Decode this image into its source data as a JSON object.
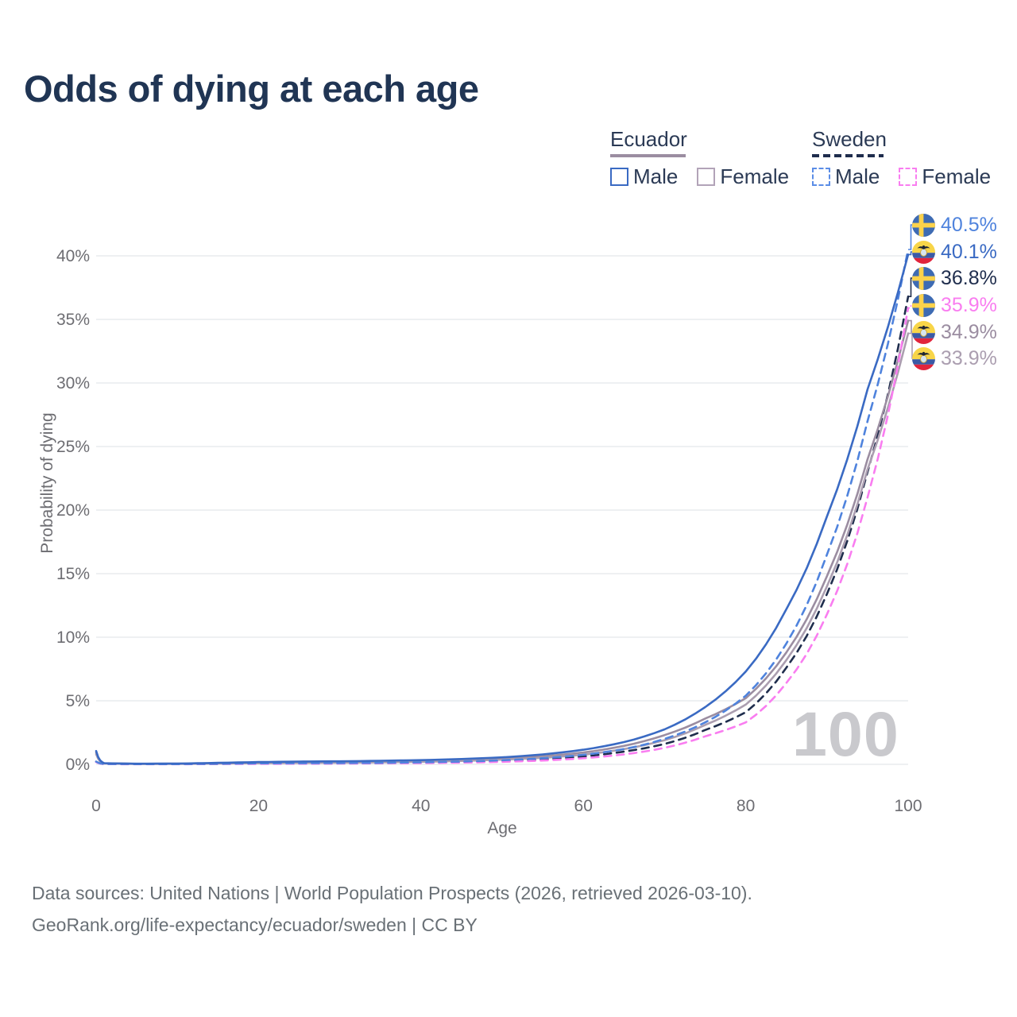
{
  "page": {
    "title": "Odds of dying at each age",
    "footer_line1": "Data sources: United Nations | World Population Prospects (2026, retrieved 2026-03-10).",
    "footer_line2": "GeoRank.org/life-expectancy/ecuador/sweden | CC BY"
  },
  "legend": {
    "groups": [
      {
        "name": "Ecuador",
        "underline_color": "#9b8da1",
        "underline_dashed": false,
        "items": [
          {
            "label": "Male",
            "color": "#3a6ac3",
            "dashed": false
          },
          {
            "label": "Female",
            "color": "#b2a3b8",
            "dashed": false
          }
        ]
      },
      {
        "name": "Sweden",
        "underline_color": "#1f2d4d",
        "underline_dashed": true,
        "items": [
          {
            "label": "Male",
            "color": "#5b8de6",
            "dashed": true
          },
          {
            "label": "Female",
            "color": "#f97df0",
            "dashed": true
          }
        ]
      }
    ]
  },
  "chart_data": {
    "type": "line",
    "title": "Odds of dying at each age",
    "xlabel": "Age",
    "ylabel": "Probability of dying",
    "xlim": [
      0,
      100
    ],
    "ylim_percent": [
      0,
      42
    ],
    "x_ticks": [
      0,
      20,
      40,
      60,
      80,
      100
    ],
    "y_ticks_percent": [
      0,
      5,
      10,
      15,
      20,
      25,
      30,
      35,
      40
    ],
    "y_tick_suffix": "%",
    "grid": "horizontal",
    "legend_position": "top-right",
    "hovered_age_label": "100",
    "ages": [
      0,
      1,
      5,
      10,
      15,
      20,
      25,
      30,
      35,
      40,
      45,
      50,
      55,
      60,
      65,
      70,
      75,
      80,
      85,
      90,
      95,
      100
    ],
    "series": [
      {
        "name": "Sweden Male",
        "country": "Sweden",
        "sex": "male",
        "flag": "sweden",
        "color": "#4f83dd",
        "dashed": true,
        "end_label": "40.5%",
        "values_percent": [
          0.22,
          0.03,
          0.02,
          0.02,
          0.05,
          0.08,
          0.09,
          0.1,
          0.12,
          0.16,
          0.22,
          0.32,
          0.48,
          0.75,
          1.2,
          2.0,
          3.3,
          5.4,
          9.5,
          16.5,
          27.0,
          40.5
        ]
      },
      {
        "name": "Ecuador Male",
        "country": "Ecuador",
        "sex": "male",
        "flag": "ecuador",
        "color": "#3a6ac3",
        "dashed": false,
        "end_label": "40.1%",
        "values_percent": [
          1.05,
          0.09,
          0.05,
          0.06,
          0.12,
          0.18,
          0.22,
          0.24,
          0.28,
          0.33,
          0.42,
          0.55,
          0.78,
          1.15,
          1.75,
          2.75,
          4.5,
          7.3,
          12.2,
          19.5,
          29.5,
          40.1
        ]
      },
      {
        "name": "Sweden Both sexes",
        "country": "Sweden",
        "sex": "both",
        "flag": "sweden",
        "color": "#1f2d4d",
        "dashed": true,
        "end_label": "36.8%",
        "values_percent": [
          0.2,
          0.03,
          0.02,
          0.02,
          0.04,
          0.06,
          0.07,
          0.08,
          0.1,
          0.13,
          0.18,
          0.26,
          0.39,
          0.62,
          1.0,
          1.6,
          2.7,
          4.1,
          7.6,
          13.4,
          23.0,
          36.8
        ]
      },
      {
        "name": "Sweden Female",
        "country": "Sweden",
        "sex": "female",
        "flag": "sweden",
        "color": "#f97df0",
        "dashed": true,
        "end_label": "35.9%",
        "values_percent": [
          0.18,
          0.02,
          0.01,
          0.01,
          0.03,
          0.04,
          0.05,
          0.06,
          0.08,
          0.1,
          0.14,
          0.2,
          0.3,
          0.48,
          0.78,
          1.3,
          2.2,
          3.3,
          6.4,
          11.8,
          21.0,
          35.9
        ]
      },
      {
        "name": "Ecuador Both sexes",
        "country": "Ecuador",
        "sex": "both",
        "flag": "ecuador",
        "color": "#9b8da1",
        "dashed": false,
        "end_label": "34.9%",
        "values_percent": [
          0.92,
          0.08,
          0.04,
          0.05,
          0.09,
          0.13,
          0.16,
          0.18,
          0.21,
          0.26,
          0.33,
          0.45,
          0.64,
          0.93,
          1.45,
          2.3,
          3.6,
          5.2,
          8.8,
          14.8,
          24.0,
          34.9
        ]
      },
      {
        "name": "Ecuador Female",
        "country": "Ecuador",
        "sex": "female",
        "flag": "ecuador",
        "color": "#ab9eb0",
        "dashed": false,
        "end_label": "33.9%",
        "values_percent": [
          0.8,
          0.07,
          0.04,
          0.04,
          0.07,
          0.09,
          0.11,
          0.13,
          0.16,
          0.2,
          0.27,
          0.37,
          0.52,
          0.76,
          1.2,
          1.9,
          3.1,
          4.7,
          8.2,
          14.0,
          23.2,
          33.9
        ]
      }
    ]
  }
}
